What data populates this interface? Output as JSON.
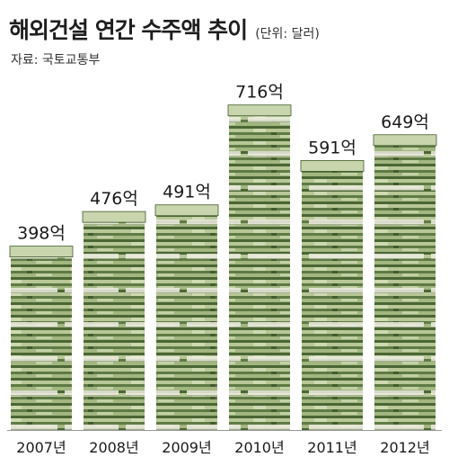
{
  "header": {
    "title": "해외건설 연간 수주액 추이",
    "unit": "(단위: 달러)",
    "source": "자료: 국토교통부"
  },
  "chart_data": {
    "type": "bar",
    "title": "해외건설 연간 수주액 추이",
    "unit_note": "(단위: 달러)",
    "categories": [
      "2007년",
      "2008년",
      "2009년",
      "2010년",
      "2011년",
      "2012년"
    ],
    "values": [
      398,
      476,
      491,
      716,
      591,
      649
    ],
    "data_labels": [
      "398억",
      "476억",
      "491억",
      "716억",
      "591억",
      "649억"
    ],
    "ylim": [
      0,
      760
    ],
    "grid": false,
    "legend": "none",
    "colors": {
      "money_dark": "#3f5a2c",
      "money_mid": "#7f9a5f",
      "money_light": "#c9d6ad",
      "band": "#f2f0e6"
    }
  }
}
